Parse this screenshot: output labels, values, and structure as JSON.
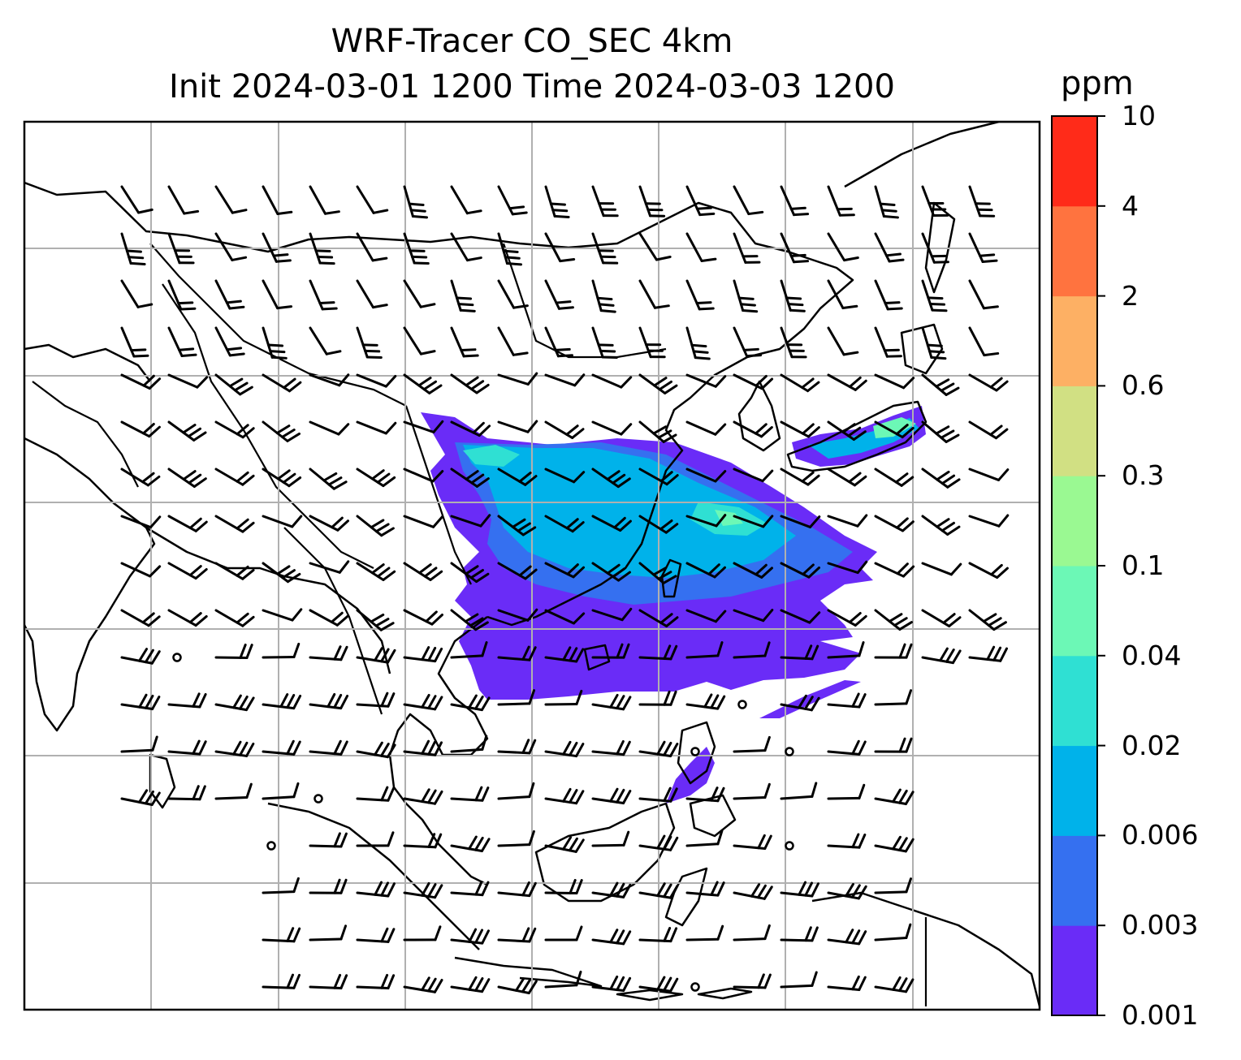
{
  "title_line1": "WRF-Tracer CO_SEC 4km",
  "title_line2": "Init 2024-03-01 1200 Time 2024-03-03 1200",
  "colorbar": {
    "unit": "ppm",
    "levels": [
      "0.001",
      "0.003",
      "0.006",
      "0.02",
      "0.04",
      "0.1",
      "0.3",
      "0.6",
      "2",
      "4",
      "10"
    ],
    "colors": [
      "#6a2cf7",
      "#3570f0",
      "#00b2ea",
      "#2fe0d3",
      "#6cf8b6",
      "#9af992",
      "#d1e083",
      "#fdb064",
      "#ff733f",
      "#ff2b19"
    ]
  },
  "map": {
    "gridlines": true,
    "plume_colors": [
      "#6a2cf7",
      "#3570f0",
      "#00b2ea",
      "#2fe0d3",
      "#6cf8b6"
    ]
  }
}
